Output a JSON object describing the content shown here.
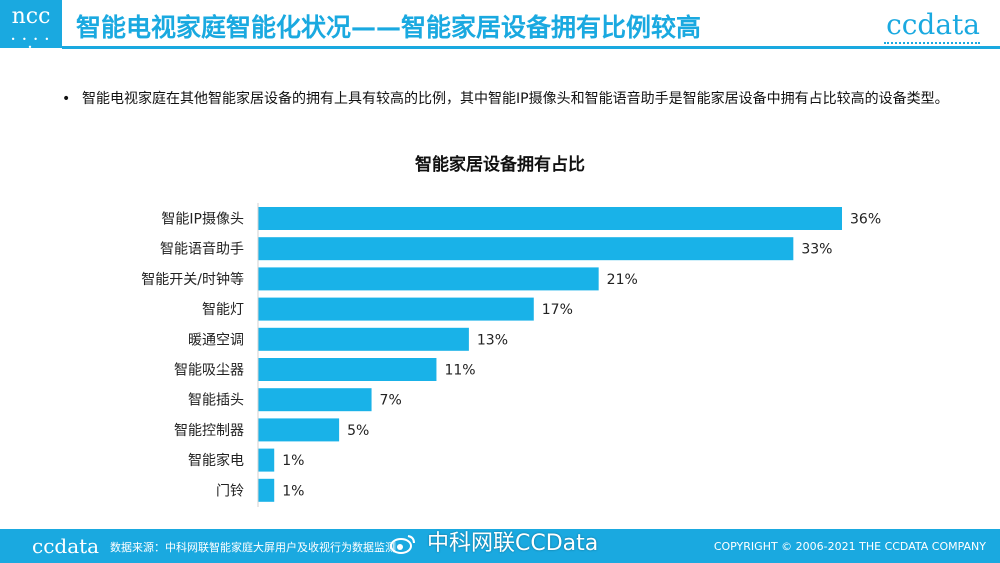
{
  "header": {
    "logo_left": "ncc",
    "logo_left_dots": "• • • • •",
    "title": "智能电视家庭智能化状况——智能家居设备拥有比例较高",
    "logo_right": "ccdata"
  },
  "bullet": {
    "marker": "•",
    "text": "智能电视家庭在其他智能家居设备的拥有上具有较高的比例，其中智能IP摄像头和智能语音助手是智能家居设备中拥有占比较高的设备类型。"
  },
  "colors": {
    "accent": "#1aa9e0",
    "bar": "#19b2e8"
  },
  "chart_data": {
    "type": "bar",
    "orientation": "horizontal",
    "title": "智能家居设备拥有占比",
    "categories": [
      "智能IP摄像头",
      "智能语音助手",
      "智能开关/时钟等",
      "智能灯",
      "暖通空调",
      "智能吸尘器",
      "智能插头",
      "智能控制器",
      "智能家电",
      "门铃"
    ],
    "values": [
      36,
      33,
      21,
      17,
      13,
      11,
      7,
      5,
      1,
      1
    ],
    "value_labels": [
      "36%",
      "33%",
      "21%",
      "17%",
      "13%",
      "11%",
      "7%",
      "5%",
      "1%",
      "1%"
    ],
    "xlim": [
      0,
      36
    ],
    "grid": false,
    "legend": "none"
  },
  "footer": {
    "logo": "ccdata",
    "source": "数据来源：中科网联智能家庭大屏用户及收视行为数据监测",
    "copyright": "COPYRIGHT © 2006-2021  THE CCDATA COMPANY"
  },
  "watermark": {
    "text": "中科网联CCData",
    "icon": "weibo-icon"
  }
}
